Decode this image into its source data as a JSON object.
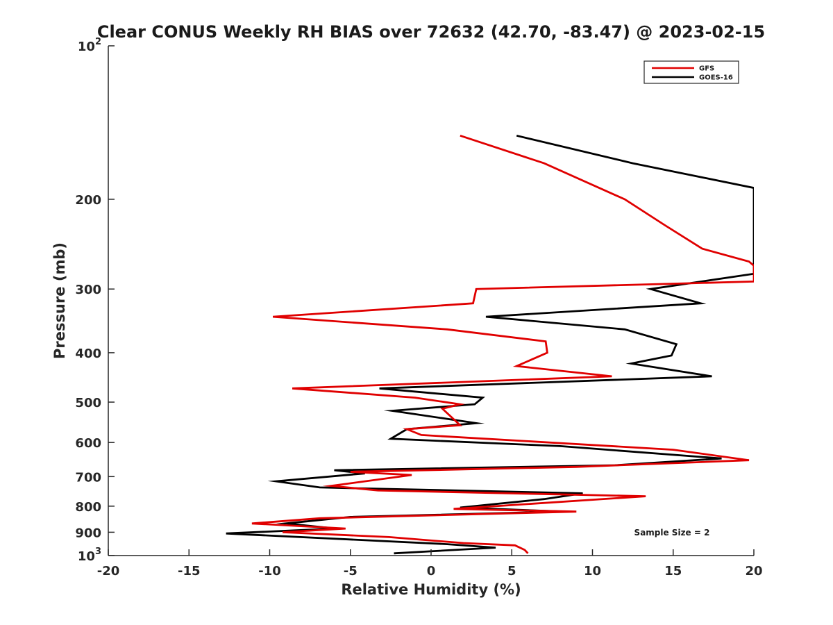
{
  "chart_data": {
    "type": "line",
    "title": "Clear CONUS Weekly RH BIAS over 72632 (42.70, -83.47) @ 2023-02-15",
    "xlabel": "Relative Humidity (%)",
    "ylabel": "Pressure (mb)",
    "xlim": [
      -20,
      20
    ],
    "ylim": [
      100,
      1000
    ],
    "y_scale": "log",
    "y_reversed": true,
    "x_ticks": [
      "-20",
      "-15",
      "-10",
      "-5",
      "0",
      "5",
      "10",
      "15",
      "20"
    ],
    "y_ticks": [
      {
        "value": 100,
        "base": "10",
        "exp": "2"
      },
      {
        "value": 200,
        "label": "200"
      },
      {
        "value": 300,
        "label": "300"
      },
      {
        "value": 400,
        "label": "400"
      },
      {
        "value": 500,
        "label": "500"
      },
      {
        "value": 600,
        "label": "600"
      },
      {
        "value": 700,
        "label": "700"
      },
      {
        "value": 800,
        "label": "800"
      },
      {
        "value": 900,
        "label": "900"
      },
      {
        "value": 1000,
        "base": "10",
        "exp": "3"
      }
    ],
    "grid": false,
    "legend_position": "top-right",
    "annotation": "Sample Size = 2",
    "series": [
      {
        "name": "GFS",
        "color": "#e00000",
        "points": [
          [
            1.8,
            150
          ],
          [
            7.0,
            170
          ],
          [
            12.0,
            200
          ],
          [
            14.5,
            225
          ],
          [
            16.8,
            250
          ],
          [
            19.7,
            265
          ],
          [
            20.0,
            270
          ],
          [
            20.0,
            290
          ],
          [
            2.8,
            300
          ],
          [
            2.6,
            320
          ],
          [
            -9.8,
            340
          ],
          [
            1.0,
            360
          ],
          [
            7.1,
            380
          ],
          [
            7.2,
            400
          ],
          [
            5.3,
            425
          ],
          [
            11.2,
            445
          ],
          [
            -8.6,
            470
          ],
          [
            -1.0,
            490
          ],
          [
            1.8,
            505
          ],
          [
            0.7,
            515
          ],
          [
            1.8,
            555
          ],
          [
            -1.5,
            565
          ],
          [
            -0.6,
            580
          ],
          [
            15.0,
            620
          ],
          [
            19.7,
            650
          ],
          [
            9.0,
            670
          ],
          [
            -5.0,
            685
          ],
          [
            -1.2,
            695
          ],
          [
            -6.2,
            730
          ],
          [
            -3.3,
            745
          ],
          [
            13.3,
            765
          ],
          [
            1.4,
            810
          ],
          [
            9.0,
            820
          ],
          [
            -6.9,
            845
          ],
          [
            -11.1,
            865
          ],
          [
            -5.3,
            885
          ],
          [
            -9.2,
            900
          ],
          [
            -2.6,
            920
          ],
          [
            2.0,
            945
          ],
          [
            5.2,
            955
          ],
          [
            5.8,
            975
          ],
          [
            6.0,
            990
          ]
        ]
      },
      {
        "name": "GOES-16",
        "color": "#000000",
        "points": [
          [
            5.3,
            150
          ],
          [
            12.5,
            170
          ],
          [
            20.0,
            190
          ],
          [
            20.0,
            280
          ],
          [
            13.6,
            300
          ],
          [
            16.7,
            320
          ],
          [
            3.4,
            340
          ],
          [
            12.0,
            360
          ],
          [
            15.2,
            385
          ],
          [
            14.9,
            405
          ],
          [
            12.4,
            420
          ],
          [
            17.4,
            445
          ],
          [
            -3.2,
            470
          ],
          [
            3.2,
            490
          ],
          [
            2.7,
            505
          ],
          [
            -2.4,
            520
          ],
          [
            2.8,
            550
          ],
          [
            -1.5,
            565
          ],
          [
            -2.5,
            590
          ],
          [
            8.0,
            610
          ],
          [
            18.0,
            645
          ],
          [
            11.4,
            665
          ],
          [
            -6.0,
            680
          ],
          [
            -4.1,
            690
          ],
          [
            -9.6,
            715
          ],
          [
            -6.9,
            735
          ],
          [
            9.4,
            755
          ],
          [
            7.0,
            775
          ],
          [
            1.8,
            805
          ],
          [
            8.2,
            820
          ],
          [
            -5.0,
            840
          ],
          [
            -9.0,
            865
          ],
          [
            -5.9,
            885
          ],
          [
            -12.7,
            905
          ],
          [
            1.0,
            950
          ],
          [
            4.0,
            965
          ],
          [
            -2.3,
            990
          ]
        ]
      }
    ]
  }
}
